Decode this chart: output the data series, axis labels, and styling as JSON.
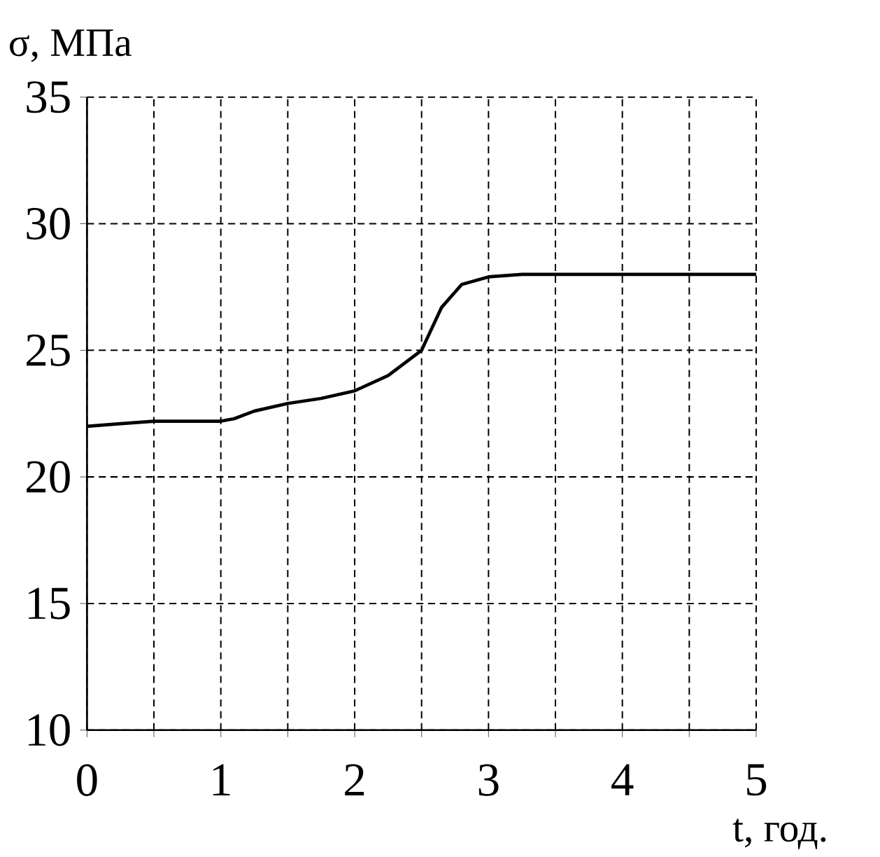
{
  "chart_data": {
    "type": "line",
    "xlabel": "t,  год.",
    "ylabel": "σ, МПа",
    "x": [
      0,
      0.25,
      0.5,
      1,
      1.1,
      1.25,
      1.5,
      1.75,
      2,
      2.25,
      2.5,
      2.65,
      2.8,
      3,
      3.25,
      4,
      5
    ],
    "series": [
      {
        "color": "#000000",
        "values": [
          22.0,
          22.1,
          22.2,
          22.2,
          22.3,
          22.6,
          22.9,
          23.1,
          23.4,
          24.0,
          25.0,
          26.7,
          27.6,
          27.9,
          28.0,
          28.0,
          28.0
        ]
      }
    ],
    "xlim": [
      0,
      5
    ],
    "ylim": [
      10,
      35
    ],
    "xticks": [
      0,
      {
        "value": 0.5,
        "label": null
      },
      1,
      {
        "value": 1.5,
        "label": null
      },
      2,
      {
        "value": 2.5,
        "label": null
      },
      3,
      {
        "value": 3.5,
        "label": null
      },
      4,
      {
        "value": 4.5,
        "label": null
      },
      5
    ],
    "yticks": [
      10,
      15,
      20,
      25,
      30,
      35
    ],
    "grid": true,
    "marker": "none",
    "line_style": "solid"
  }
}
